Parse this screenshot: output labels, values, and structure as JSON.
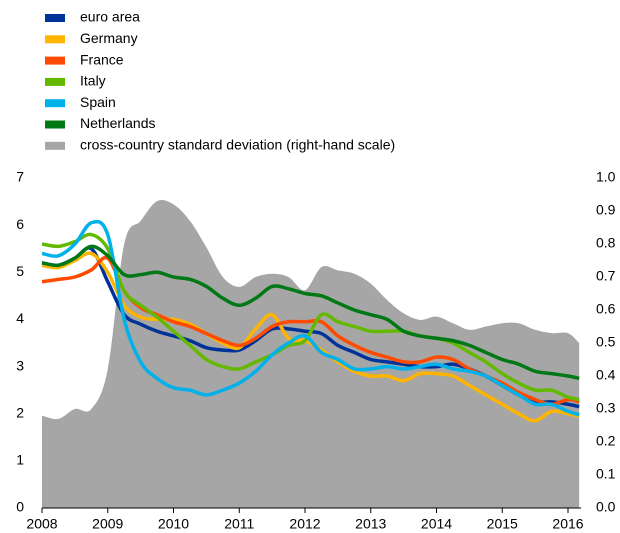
{
  "chart_data": {
    "type": "line",
    "x": [
      2008,
      2008.25,
      2008.5,
      2008.75,
      2009,
      2009.25,
      2009.5,
      2009.75,
      2010,
      2010.25,
      2010.5,
      2010.75,
      2011,
      2011.25,
      2011.5,
      2011.75,
      2012,
      2012.25,
      2012.5,
      2012.75,
      2013,
      2013.25,
      2013.5,
      2013.75,
      2014,
      2014.25,
      2014.5,
      2014.75,
      2015,
      2015.25,
      2015.5,
      2015.75,
      2016,
      2016.17
    ],
    "series": [
      {
        "name": "euro area",
        "color": "#003399",
        "values": [
          5.2,
          5.15,
          5.3,
          5.5,
          4.8,
          4.1,
          3.9,
          3.75,
          3.65,
          3.55,
          3.4,
          3.35,
          3.35,
          3.55,
          3.8,
          3.8,
          3.75,
          3.7,
          3.45,
          3.3,
          3.15,
          3.1,
          3.05,
          3.0,
          3.0,
          3.05,
          2.95,
          2.8,
          2.6,
          2.4,
          2.25,
          2.25,
          2.2,
          2.15
        ]
      },
      {
        "name": "Germany",
        "color": "#ffb400",
        "values": [
          5.15,
          5.1,
          5.25,
          5.4,
          5.0,
          4.3,
          4.05,
          4.0,
          4.0,
          3.9,
          3.7,
          3.5,
          3.4,
          3.8,
          4.1,
          3.6,
          3.55,
          3.35,
          3.1,
          2.9,
          2.8,
          2.8,
          2.7,
          2.85,
          2.85,
          2.8,
          2.6,
          2.4,
          2.2,
          2.0,
          1.85,
          2.05,
          2.0,
          1.95
        ]
      },
      {
        "name": "France",
        "color": "#ff4b00",
        "values": [
          4.8,
          4.85,
          4.9,
          5.05,
          5.3,
          4.6,
          4.25,
          4.1,
          3.95,
          3.85,
          3.7,
          3.55,
          3.45,
          3.6,
          3.85,
          3.95,
          3.95,
          3.95,
          3.65,
          3.45,
          3.3,
          3.2,
          3.1,
          3.1,
          3.2,
          3.15,
          2.95,
          2.8,
          2.65,
          2.45,
          2.3,
          2.2,
          2.3,
          2.25
        ]
      },
      {
        "name": "Italy",
        "color": "#65b800",
        "values": [
          5.6,
          5.55,
          5.65,
          5.8,
          5.5,
          4.6,
          4.3,
          4.05,
          3.75,
          3.45,
          3.15,
          3.0,
          2.95,
          3.1,
          3.25,
          3.45,
          3.55,
          4.1,
          3.95,
          3.85,
          3.75,
          3.75,
          3.75,
          3.65,
          3.6,
          3.5,
          3.3,
          3.1,
          2.85,
          2.65,
          2.5,
          2.5,
          2.35,
          2.3
        ]
      },
      {
        "name": "Spain",
        "color": "#00b1ea",
        "values": [
          5.4,
          5.35,
          5.6,
          6.05,
          5.8,
          4.0,
          3.1,
          2.75,
          2.55,
          2.5,
          2.4,
          2.5,
          2.65,
          2.9,
          3.25,
          3.5,
          3.65,
          3.3,
          3.15,
          2.95,
          2.95,
          3.0,
          2.95,
          3.0,
          3.05,
          2.95,
          2.9,
          2.8,
          2.6,
          2.4,
          2.2,
          2.2,
          2.05,
          1.98
        ]
      },
      {
        "name": "Netherlands",
        "color": "#007816",
        "values": [
          5.2,
          5.15,
          5.3,
          5.55,
          5.35,
          4.95,
          4.95,
          5.0,
          4.9,
          4.85,
          4.7,
          4.45,
          4.3,
          4.45,
          4.7,
          4.65,
          4.55,
          4.5,
          4.35,
          4.2,
          4.1,
          4.0,
          3.75,
          3.65,
          3.6,
          3.55,
          3.45,
          3.3,
          3.15,
          3.05,
          2.9,
          2.85,
          2.8,
          2.75
        ]
      },
      {
        "name": "cross-country standard deviation (right-hand scale)",
        "color": "#a6a6a6",
        "type": "area",
        "axis": "y2",
        "values": [
          0.28,
          0.27,
          0.3,
          0.3,
          0.42,
          0.8,
          0.87,
          0.93,
          0.92,
          0.87,
          0.79,
          0.7,
          0.67,
          0.7,
          0.71,
          0.7,
          0.66,
          0.73,
          0.72,
          0.71,
          0.68,
          0.63,
          0.59,
          0.57,
          0.58,
          0.56,
          0.54,
          0.55,
          0.56,
          0.56,
          0.54,
          0.53,
          0.53,
          0.5
        ]
      }
    ],
    "xlim": [
      2008,
      2016.2
    ],
    "xticks": [
      2008,
      2009,
      2010,
      2011,
      2012,
      2013,
      2014,
      2015,
      2016
    ],
    "ylim": [
      0,
      7
    ],
    "yticks": [
      0,
      1,
      2,
      3,
      4,
      5,
      6,
      7
    ],
    "y2lim": [
      0,
      1
    ],
    "y2ticks": [
      {
        "value": 0,
        "label": "0.0"
      },
      0.1,
      0.2,
      0.3,
      0.4,
      0.5,
      0.6,
      0.7,
      0.8,
      0.9,
      {
        "value": 1,
        "label": "1.0"
      }
    ]
  }
}
